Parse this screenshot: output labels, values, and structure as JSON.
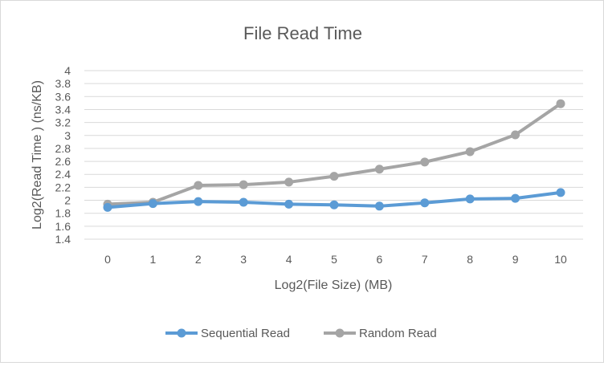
{
  "chart_data": {
    "type": "line",
    "title": "File Read Time",
    "xlabel": "Log2(File Size) (MB)",
    "ylabel": "Log2(Read Time ) (ns/KB)",
    "x": [
      0,
      1,
      2,
      3,
      4,
      5,
      6,
      7,
      8,
      9,
      10
    ],
    "x_tick_labels": [
      "0",
      "1",
      "2",
      "3",
      "4",
      "5",
      "6",
      "7",
      "8",
      "9",
      "10"
    ],
    "ylim": [
      1.4,
      4
    ],
    "y_tick_labels": [
      "1.4",
      "1.6",
      "1.8",
      "2",
      "2.2",
      "2.4",
      "2.6",
      "2.8",
      "3",
      "3.2",
      "3.4",
      "3.6",
      "3.8",
      "4"
    ],
    "grid": true,
    "legend_position": "bottom",
    "series": [
      {
        "name": "Sequential Read",
        "color": "#5b9bd5",
        "values": [
          1.89,
          1.95,
          1.98,
          1.97,
          1.94,
          1.93,
          1.91,
          1.96,
          2.02,
          2.03,
          2.12
        ]
      },
      {
        "name": "Random Read",
        "color": "#a5a5a5",
        "values": [
          1.94,
          1.97,
          2.23,
          2.24,
          2.28,
          2.37,
          2.48,
          2.59,
          2.75,
          3.01,
          3.49
        ]
      }
    ]
  }
}
